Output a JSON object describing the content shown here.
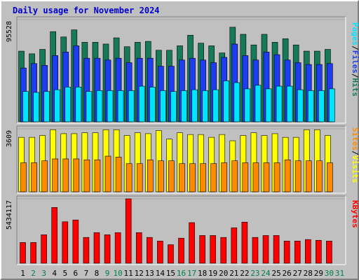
{
  "chart_data": [
    {
      "type": "bar",
      "title": "Daily usage for November 2024",
      "categories": [
        "1",
        "2",
        "3",
        "4",
        "5",
        "6",
        "7",
        "8",
        "9",
        "10",
        "11",
        "12",
        "13",
        "14",
        "15",
        "16",
        "17",
        "18",
        "19",
        "20",
        "21",
        "22",
        "23",
        "24",
        "25",
        "26",
        "27",
        "28",
        "29",
        "30",
        "31"
      ],
      "weekend_days": [
        "2",
        "3",
        "9",
        "10",
        "16",
        "17",
        "23",
        "24",
        "30",
        "31"
      ],
      "y_tick_label": "95528",
      "ylim": [
        0,
        95528
      ],
      "series": [
        {
          "name": "Hits",
          "color": "#157a55",
          "values": [
            66048,
            63562,
            67705,
            84277,
            79305,
            85935,
            74333,
            74333,
            72676,
            78476,
            70190,
            74333,
            75162,
            66876,
            66876,
            71019,
            80962,
            73505,
            71019,
            64390,
            88420,
            81790,
            71847,
            81790,
            74333,
            77648,
            71847,
            66048,
            66048,
            67705,
            null
          ]
        },
        {
          "name": "Files",
          "color": "#1e3cf0",
          "values": [
            50305,
            54448,
            52791,
            61905,
            65219,
            71019,
            59419,
            59419,
            57762,
            59419,
            55277,
            59419,
            59419,
            51962,
            51962,
            57762,
            59419,
            57762,
            55277,
            60248,
            72676,
            61905,
            57762,
            65219,
            62733,
            57762,
            55277,
            53619,
            53619,
            54448,
            null
          ]
        },
        {
          "name": "Pages",
          "color": "#00e5ff",
          "values": [
            28343,
            27514,
            28343,
            30000,
            32486,
            32486,
            28343,
            29171,
            29171,
            29171,
            29171,
            33314,
            32486,
            29171,
            28343,
            29171,
            30000,
            29171,
            30000,
            38286,
            36629,
            30829,
            34143,
            30829,
            33314,
            33314,
            30000,
            29171,
            29171,
            30829,
            null
          ]
        }
      ],
      "legend": [
        "Pages",
        "/",
        "Files",
        "/",
        "Hits"
      ]
    },
    {
      "type": "bar",
      "y_tick_label": "3609",
      "ylim": [
        0,
        3609
      ],
      "series": [
        {
          "name": "Visits",
          "color": "#ffff00",
          "values": [
            3121,
            3121,
            3226,
            3558,
            3331,
            3331,
            3382,
            3382,
            3558,
            3558,
            3226,
            3382,
            3331,
            3509,
            3018,
            3382,
            3281,
            3281,
            3121,
            3281,
            2925,
            3226,
            3382,
            3226,
            3331,
            3121,
            3121,
            3558,
            3558,
            3226,
            null
          ]
        },
        {
          "name": "Sites",
          "color": "#ff8c00",
          "values": [
            1662,
            1662,
            1777,
            1885,
            1885,
            1885,
            1832,
            1832,
            2044,
            1990,
            1615,
            1615,
            1832,
            1777,
            1777,
            1615,
            1615,
            1615,
            1615,
            1662,
            1777,
            1662,
            1662,
            1662,
            1662,
            1832,
            1777,
            1777,
            1777,
            1662,
            null
          ]
        }
      ],
      "legend": [
        "Sites",
        "/",
        "Visits"
      ]
    },
    {
      "type": "bar",
      "y_tick_label": "5434117",
      "ylim": [
        0,
        5434117
      ],
      "series": [
        {
          "name": "KBytes",
          "color": "#ff0000",
          "values": [
            1747113,
            1747113,
            2398506,
            4707234,
            3496380,
            3648656,
            2174036,
            2579826,
            2398506,
            2579826,
            5434117,
            2579826,
            2174036,
            1871604,
            1561541,
            2112520,
            3424740,
            2337201,
            2337201,
            2174036,
            2983500,
            3467664,
            2174036,
            2337201,
            2337201,
            1871604,
            1871604,
            1995823,
            1932999,
            1871604,
            null
          ]
        }
      ],
      "legend": [
        "KBytes"
      ]
    }
  ]
}
